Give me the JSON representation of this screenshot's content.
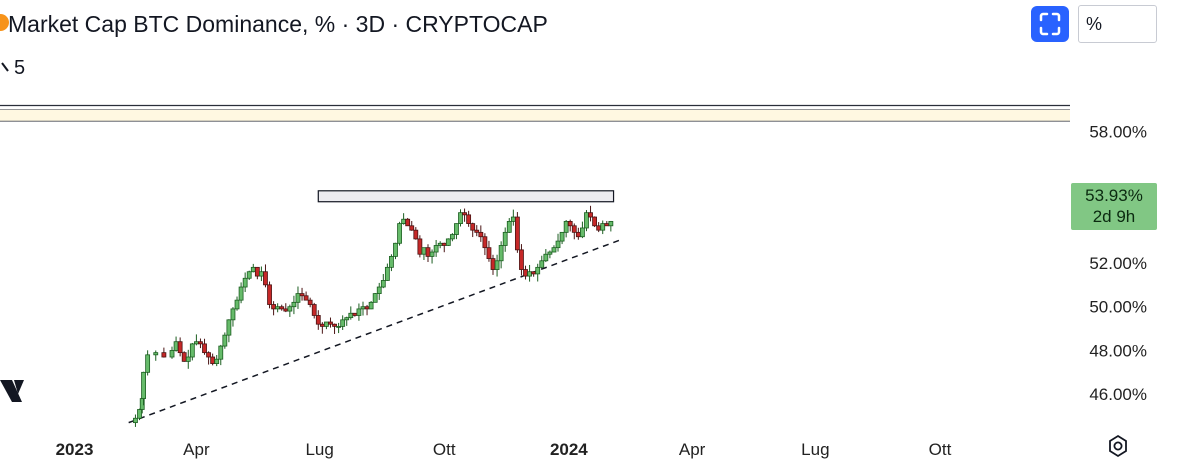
{
  "header": {
    "title": "Market Cap BTC Dominance, % · 3D · CRYPTOCAP",
    "interval_value": "5",
    "unit_label": "%"
  },
  "price_badge": {
    "value": "53.93%",
    "countdown": "2d 9h"
  },
  "icons": {
    "logo": "bitcoin-circle-icon",
    "fullscreen": "fullscreen-icon",
    "settings": "settings-icon",
    "brand": "tradingview-logo-icon"
  },
  "colors": {
    "up": "#26a69a",
    "down": "#ef5350",
    "badge": "#81c784",
    "accent": "#2962ff"
  },
  "chart_data": {
    "type": "candlestick",
    "title": "Market Cap BTC Dominance, % · 3D · CRYPTOCAP",
    "y_axis": {
      "ticks": [
        58,
        52,
        50,
        48,
        46
      ],
      "tick_labels": [
        "58.00%",
        "52.00%",
        "50.00%",
        "48.00%",
        "46.00%"
      ],
      "range": [
        44.5,
        60
      ]
    },
    "x_axis": {
      "ticks": [
        {
          "label": "2023",
          "bold": true,
          "t": 0
        },
        {
          "label": "Apr",
          "bold": false,
          "t": 90
        },
        {
          "label": "Lug",
          "bold": false,
          "t": 181
        },
        {
          "label": "Ott",
          "bold": false,
          "t": 273
        },
        {
          "label": "2024",
          "bold": true,
          "t": 365
        },
        {
          "label": "Apr",
          "bold": false,
          "t": 456
        },
        {
          "label": "Lug",
          "bold": false,
          "t": 547
        },
        {
          "label": "Ott",
          "bold": false,
          "t": 639
        }
      ],
      "range": [
        -55,
        735
      ]
    },
    "last_value": 53.93,
    "series_path": [
      [
        40,
        44.7
      ],
      [
        45,
        44.9
      ],
      [
        48,
        45.3
      ],
      [
        50,
        45.8
      ],
      [
        51,
        47.0
      ],
      [
        54,
        47.8
      ],
      [
        60,
        47.9
      ],
      [
        66,
        47.7
      ],
      [
        72,
        48.0
      ],
      [
        75,
        48.4
      ],
      [
        78,
        47.9
      ],
      [
        81,
        47.5
      ],
      [
        84,
        47.7
      ],
      [
        87,
        48.3
      ],
      [
        90,
        48.4
      ],
      [
        93,
        48.3
      ],
      [
        96,
        47.9
      ],
      [
        99,
        47.7
      ],
      [
        102,
        47.4
      ],
      [
        105,
        47.6
      ],
      [
        108,
        48.2
      ],
      [
        111,
        48.7
      ],
      [
        114,
        49.4
      ],
      [
        117,
        49.9
      ],
      [
        120,
        50.3
      ],
      [
        123,
        50.9
      ],
      [
        126,
        51.3
      ],
      [
        129,
        51.6
      ],
      [
        132,
        51.8
      ],
      [
        135,
        51.4
      ],
      [
        138,
        51.6
      ],
      [
        141,
        51.0
      ],
      [
        144,
        50.1
      ],
      [
        147,
        49.9
      ],
      [
        150,
        50.0
      ],
      [
        153,
        49.9
      ],
      [
        156,
        49.8
      ],
      [
        159,
        50.0
      ],
      [
        162,
        50.2
      ],
      [
        165,
        50.6
      ],
      [
        168,
        50.5
      ],
      [
        171,
        50.3
      ],
      [
        174,
        50.1
      ],
      [
        177,
        49.6
      ],
      [
        180,
        49.2
      ],
      [
        183,
        49.1
      ],
      [
        186,
        49.3
      ],
      [
        189,
        49.2
      ],
      [
        192,
        49.1
      ],
      [
        195,
        49.1
      ],
      [
        198,
        49.4
      ],
      [
        201,
        49.5
      ],
      [
        204,
        49.7
      ],
      [
        207,
        49.6
      ],
      [
        210,
        49.9
      ],
      [
        213,
        50.0
      ],
      [
        216,
        49.9
      ],
      [
        219,
        50.2
      ],
      [
        222,
        50.6
      ],
      [
        225,
        50.9
      ],
      [
        228,
        51.2
      ],
      [
        231,
        51.8
      ],
      [
        234,
        52.3
      ],
      [
        237,
        52.9
      ],
      [
        240,
        53.8
      ],
      [
        243,
        54.0
      ],
      [
        246,
        53.7
      ],
      [
        249,
        53.5
      ],
      [
        252,
        53.1
      ],
      [
        255,
        52.4
      ],
      [
        258,
        52.7
      ],
      [
        261,
        52.3
      ],
      [
        264,
        52.5
      ],
      [
        267,
        52.8
      ],
      [
        270,
        52.9
      ],
      [
        273,
        52.8
      ],
      [
        276,
        53.1
      ],
      [
        279,
        53.3
      ],
      [
        282,
        53.8
      ],
      [
        285,
        54.3
      ],
      [
        288,
        54.2
      ],
      [
        291,
        53.8
      ],
      [
        294,
        53.5
      ],
      [
        297,
        53.4
      ],
      [
        300,
        53.2
      ],
      [
        303,
        52.7
      ],
      [
        306,
        52.2
      ],
      [
        309,
        51.7
      ],
      [
        312,
        52.1
      ],
      [
        315,
        52.8
      ],
      [
        318,
        53.4
      ],
      [
        321,
        53.9
      ],
      [
        324,
        54.1
      ],
      [
        327,
        52.6
      ],
      [
        330,
        51.7
      ],
      [
        333,
        51.4
      ],
      [
        336,
        51.6
      ],
      [
        339,
        51.5
      ],
      [
        342,
        51.8
      ],
      [
        345,
        52.1
      ],
      [
        348,
        52.4
      ],
      [
        351,
        52.5
      ],
      [
        354,
        52.7
      ],
      [
        357,
        53.0
      ],
      [
        360,
        53.4
      ],
      [
        363,
        53.9
      ],
      [
        366,
        53.7
      ],
      [
        369,
        53.4
      ],
      [
        372,
        53.2
      ],
      [
        375,
        53.6
      ],
      [
        378,
        54.3
      ],
      [
        381,
        54.1
      ],
      [
        384,
        53.7
      ],
      [
        387,
        53.5
      ],
      [
        390,
        53.8
      ],
      [
        393,
        53.7
      ],
      [
        396,
        53.9
      ]
    ],
    "annotations": {
      "horizontal_lines": [
        59.2,
        59.0,
        58.5
      ],
      "resistance_box": {
        "t0": 180,
        "t1": 398,
        "y0": 54.8,
        "y1": 55.3
      },
      "trend_line": {
        "t0": 40,
        "y0": 44.7,
        "t1": 405,
        "y1": 53.1
      }
    }
  }
}
